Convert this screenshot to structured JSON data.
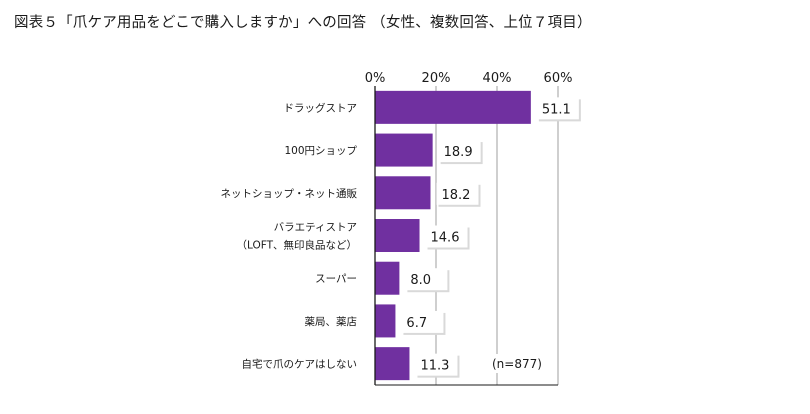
{
  "title": "図表５「爪ケア用品をどこで購入しますか」への回答 （女性、複数回答、上位７項目）",
  "chart_data": {
    "type": "bar",
    "orientation": "horizontal",
    "title": "図表５「爪ケア用品をどこで購入しますか」への回答 （女性、複数回答、上位７項目）",
    "categories": [
      [
        "ドラッグストア"
      ],
      [
        "100円ショップ"
      ],
      [
        "ネットショップ・ネット通販"
      ],
      [
        "バラエティストア",
        "（LOFT、無印良品など）"
      ],
      [
        "スーパー"
      ],
      [
        "薬局、薬店"
      ],
      [
        "自宅で爪のケアはしない"
      ]
    ],
    "values": [
      51.1,
      18.9,
      18.2,
      14.6,
      8.0,
      6.7,
      11.3
    ],
    "value_labels": [
      "51.1",
      "18.9",
      "18.2",
      "14.6",
      "8.0",
      "6.7",
      "11.3"
    ],
    "xticks": [
      "0%",
      "20%",
      "40%",
      "60%"
    ],
    "xtick_values": [
      0,
      20,
      40,
      60
    ],
    "xlim": [
      0,
      60
    ],
    "grid": true,
    "note": "(n=877)",
    "colors": {
      "bar": "#7030a0",
      "grid": "#bfbfbf",
      "axis": "#1a1a1a",
      "label_shadow": "#d9d9d9"
    }
  }
}
